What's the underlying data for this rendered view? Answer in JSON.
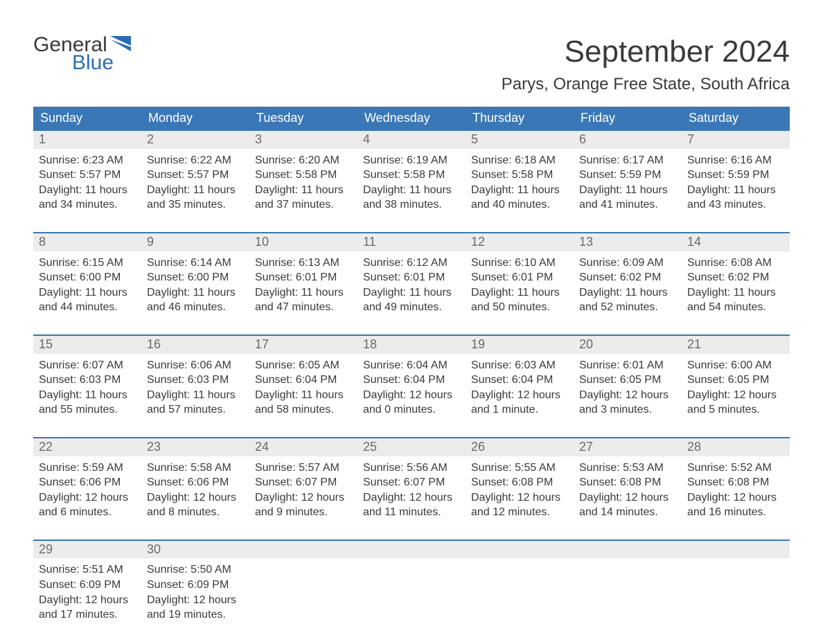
{
  "logo": {
    "word1": "General",
    "word2": "Blue"
  },
  "header": {
    "month_title": "September 2024",
    "location": "Parys, Orange Free State, South Africa"
  },
  "colors": {
    "header_bg": "#3a77b6",
    "header_text": "#ffffff",
    "daynum_bg": "#ececec",
    "daynum_text": "#6a6a6a",
    "body_text": "#3a3a3a",
    "accent_blue": "#2a6db5",
    "page_bg": "#ffffff",
    "week_border": "#3a77b6"
  },
  "typography": {
    "month_title_fontsize": 44,
    "location_fontsize": 24,
    "weekday_fontsize": 18,
    "daynum_fontsize": 18,
    "body_fontsize": 16,
    "logo_fontsize": 30
  },
  "calendar": {
    "type": "table",
    "columns": [
      "Sunday",
      "Monday",
      "Tuesday",
      "Wednesday",
      "Thursday",
      "Friday",
      "Saturday"
    ],
    "weeks": [
      [
        {
          "day": "1",
          "sunrise": "6:23 AM",
          "sunset": "5:57 PM",
          "daylight": "11 hours and 34 minutes."
        },
        {
          "day": "2",
          "sunrise": "6:22 AM",
          "sunset": "5:57 PM",
          "daylight": "11 hours and 35 minutes."
        },
        {
          "day": "3",
          "sunrise": "6:20 AM",
          "sunset": "5:58 PM",
          "daylight": "11 hours and 37 minutes."
        },
        {
          "day": "4",
          "sunrise": "6:19 AM",
          "sunset": "5:58 PM",
          "daylight": "11 hours and 38 minutes."
        },
        {
          "day": "5",
          "sunrise": "6:18 AM",
          "sunset": "5:58 PM",
          "daylight": "11 hours and 40 minutes."
        },
        {
          "day": "6",
          "sunrise": "6:17 AM",
          "sunset": "5:59 PM",
          "daylight": "11 hours and 41 minutes."
        },
        {
          "day": "7",
          "sunrise": "6:16 AM",
          "sunset": "5:59 PM",
          "daylight": "11 hours and 43 minutes."
        }
      ],
      [
        {
          "day": "8",
          "sunrise": "6:15 AM",
          "sunset": "6:00 PM",
          "daylight": "11 hours and 44 minutes."
        },
        {
          "day": "9",
          "sunrise": "6:14 AM",
          "sunset": "6:00 PM",
          "daylight": "11 hours and 46 minutes."
        },
        {
          "day": "10",
          "sunrise": "6:13 AM",
          "sunset": "6:01 PM",
          "daylight": "11 hours and 47 minutes."
        },
        {
          "day": "11",
          "sunrise": "6:12 AM",
          "sunset": "6:01 PM",
          "daylight": "11 hours and 49 minutes."
        },
        {
          "day": "12",
          "sunrise": "6:10 AM",
          "sunset": "6:01 PM",
          "daylight": "11 hours and 50 minutes."
        },
        {
          "day": "13",
          "sunrise": "6:09 AM",
          "sunset": "6:02 PM",
          "daylight": "11 hours and 52 minutes."
        },
        {
          "day": "14",
          "sunrise": "6:08 AM",
          "sunset": "6:02 PM",
          "daylight": "11 hours and 54 minutes."
        }
      ],
      [
        {
          "day": "15",
          "sunrise": "6:07 AM",
          "sunset": "6:03 PM",
          "daylight": "11 hours and 55 minutes."
        },
        {
          "day": "16",
          "sunrise": "6:06 AM",
          "sunset": "6:03 PM",
          "daylight": "11 hours and 57 minutes."
        },
        {
          "day": "17",
          "sunrise": "6:05 AM",
          "sunset": "6:04 PM",
          "daylight": "11 hours and 58 minutes."
        },
        {
          "day": "18",
          "sunrise": "6:04 AM",
          "sunset": "6:04 PM",
          "daylight": "12 hours and 0 minutes."
        },
        {
          "day": "19",
          "sunrise": "6:03 AM",
          "sunset": "6:04 PM",
          "daylight": "12 hours and 1 minute."
        },
        {
          "day": "20",
          "sunrise": "6:01 AM",
          "sunset": "6:05 PM",
          "daylight": "12 hours and 3 minutes."
        },
        {
          "day": "21",
          "sunrise": "6:00 AM",
          "sunset": "6:05 PM",
          "daylight": "12 hours and 5 minutes."
        }
      ],
      [
        {
          "day": "22",
          "sunrise": "5:59 AM",
          "sunset": "6:06 PM",
          "daylight": "12 hours and 6 minutes."
        },
        {
          "day": "23",
          "sunrise": "5:58 AM",
          "sunset": "6:06 PM",
          "daylight": "12 hours and 8 minutes."
        },
        {
          "day": "24",
          "sunrise": "5:57 AM",
          "sunset": "6:07 PM",
          "daylight": "12 hours and 9 minutes."
        },
        {
          "day": "25",
          "sunrise": "5:56 AM",
          "sunset": "6:07 PM",
          "daylight": "12 hours and 11 minutes."
        },
        {
          "day": "26",
          "sunrise": "5:55 AM",
          "sunset": "6:08 PM",
          "daylight": "12 hours and 12 minutes."
        },
        {
          "day": "27",
          "sunrise": "5:53 AM",
          "sunset": "6:08 PM",
          "daylight": "12 hours and 14 minutes."
        },
        {
          "day": "28",
          "sunrise": "5:52 AM",
          "sunset": "6:08 PM",
          "daylight": "12 hours and 16 minutes."
        }
      ],
      [
        {
          "day": "29",
          "sunrise": "5:51 AM",
          "sunset": "6:09 PM",
          "daylight": "12 hours and 17 minutes."
        },
        {
          "day": "30",
          "sunrise": "5:50 AM",
          "sunset": "6:09 PM",
          "daylight": "12 hours and 19 minutes."
        },
        null,
        null,
        null,
        null,
        null
      ]
    ],
    "labels": {
      "sunrise_prefix": "Sunrise: ",
      "sunset_prefix": "Sunset: ",
      "daylight_prefix": "Daylight: "
    }
  }
}
